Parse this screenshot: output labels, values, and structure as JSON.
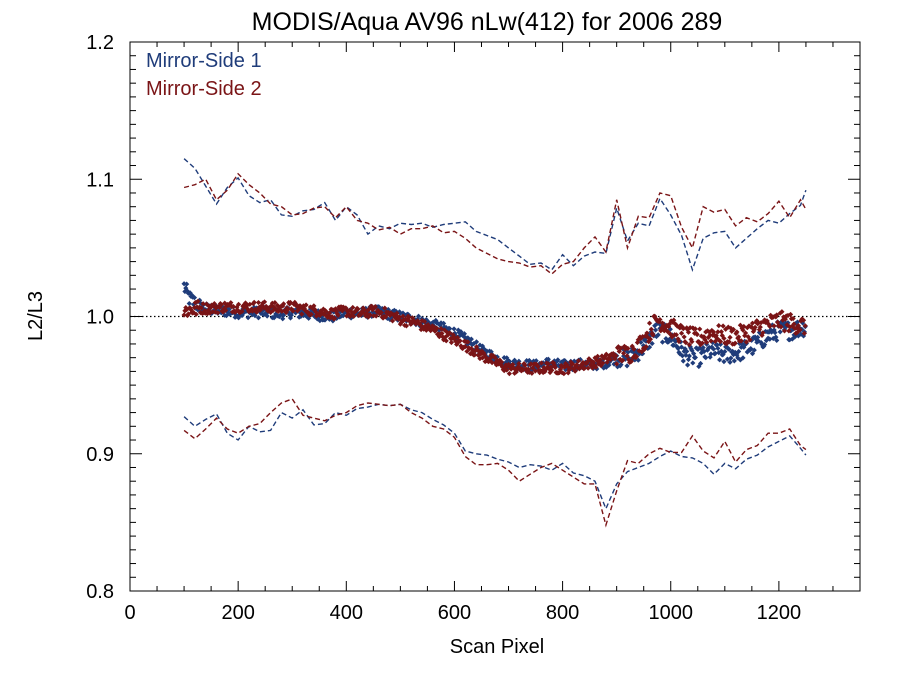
{
  "chart_data": {
    "type": "scatter",
    "title": "MODIS/Aqua AV96 nLw(412) for 2006 289",
    "xlabel": "Scan Pixel",
    "ylabel": "L2/L3",
    "xlim": [
      0,
      1350
    ],
    "ylim": [
      0.8,
      1.2
    ],
    "xticks": [
      0,
      200,
      400,
      600,
      800,
      1000,
      1200
    ],
    "yticks": [
      0.8,
      0.9,
      1.0,
      1.1,
      1.2
    ],
    "ytick_labels": [
      "0.8",
      "0.9",
      "1.0",
      "1.1",
      "1.2"
    ],
    "reference_line": 1.0,
    "legend_position": "top-left",
    "colors": {
      "ms1": "#1f3c7a",
      "ms2": "#7a1416",
      "axis": "#000000"
    },
    "series": [
      {
        "name": "Mirror-Side 1",
        "key": "ms1",
        "mean": {
          "x": [
            100,
            110,
            130,
            150,
            175,
            200,
            225,
            250,
            275,
            300,
            325,
            350,
            375,
            400,
            425,
            450,
            475,
            500,
            525,
            550,
            575,
            600,
            625,
            650,
            675,
            700,
            725,
            750,
            775,
            800,
            825,
            850,
            875,
            900,
            925,
            950,
            975,
            1000,
            1025,
            1050,
            1075,
            1100,
            1125,
            1150,
            1175,
            1200,
            1225,
            1250
          ],
          "y": [
            1.022,
            1.013,
            1.007,
            1.005,
            1.004,
            1.003,
            1.003,
            1.003,
            1.002,
            1.003,
            1.002,
            1.001,
            1.0,
            1.003,
            1.002,
            1.004,
            1.002,
            1.0,
            0.998,
            0.995,
            0.992,
            0.988,
            0.982,
            0.975,
            0.97,
            0.966,
            0.965,
            0.964,
            0.966,
            0.964,
            0.965,
            0.965,
            0.966,
            0.97,
            0.97,
            0.978,
            0.99,
            0.985,
            0.972,
            0.97,
            0.975,
            0.972,
            0.974,
            0.978,
            0.985,
            0.99,
            0.99,
            0.993
          ]
        },
        "upper": {
          "x": [
            100,
            120,
            140,
            160,
            180,
            200,
            220,
            240,
            260,
            280,
            300,
            320,
            340,
            360,
            380,
            400,
            420,
            440,
            460,
            480,
            500,
            520,
            540,
            560,
            580,
            600,
            620,
            640,
            660,
            680,
            700,
            720,
            740,
            760,
            780,
            800,
            820,
            840,
            860,
            880,
            900,
            920,
            940,
            960,
            980,
            1000,
            1020,
            1040,
            1060,
            1080,
            1100,
            1120,
            1140,
            1160,
            1180,
            1200,
            1220,
            1240,
            1250
          ],
          "y": [
            1.115,
            1.108,
            1.095,
            1.082,
            1.094,
            1.101,
            1.088,
            1.083,
            1.085,
            1.074,
            1.073,
            1.077,
            1.078,
            1.083,
            1.07,
            1.08,
            1.074,
            1.06,
            1.066,
            1.064,
            1.068,
            1.067,
            1.068,
            1.065,
            1.067,
            1.068,
            1.069,
            1.062,
            1.059,
            1.056,
            1.05,
            1.044,
            1.038,
            1.039,
            1.034,
            1.045,
            1.037,
            1.044,
            1.047,
            1.046,
            1.079,
            1.055,
            1.068,
            1.066,
            1.086,
            1.074,
            1.059,
            1.034,
            1.057,
            1.061,
            1.062,
            1.05,
            1.057,
            1.064,
            1.07,
            1.068,
            1.075,
            1.081,
            1.092
          ]
        },
        "lower": {
          "x": [
            100,
            120,
            140,
            160,
            180,
            200,
            220,
            240,
            260,
            280,
            300,
            320,
            340,
            360,
            380,
            400,
            420,
            440,
            460,
            480,
            500,
            520,
            540,
            560,
            580,
            600,
            620,
            640,
            660,
            680,
            700,
            720,
            740,
            760,
            780,
            800,
            820,
            840,
            860,
            880,
            900,
            920,
            940,
            960,
            980,
            1000,
            1020,
            1040,
            1060,
            1080,
            1100,
            1120,
            1140,
            1160,
            1180,
            1200,
            1220,
            1240,
            1250
          ],
          "y": [
            0.927,
            0.92,
            0.925,
            0.929,
            0.915,
            0.91,
            0.92,
            0.916,
            0.917,
            0.93,
            0.926,
            0.932,
            0.921,
            0.922,
            0.93,
            0.928,
            0.933,
            0.934,
            0.936,
            0.935,
            0.936,
            0.932,
            0.93,
            0.925,
            0.921,
            0.915,
            0.902,
            0.9,
            0.899,
            0.896,
            0.894,
            0.89,
            0.892,
            0.891,
            0.888,
            0.893,
            0.886,
            0.884,
            0.88,
            0.86,
            0.878,
            0.887,
            0.89,
            0.893,
            0.898,
            0.902,
            0.898,
            0.897,
            0.893,
            0.885,
            0.893,
            0.889,
            0.896,
            0.899,
            0.905,
            0.909,
            0.913,
            0.904,
            0.899
          ]
        }
      },
      {
        "name": "Mirror-Side 2",
        "key": "ms2",
        "mean": {
          "x": [
            100,
            110,
            130,
            150,
            175,
            200,
            225,
            250,
            275,
            300,
            325,
            350,
            375,
            400,
            425,
            450,
            475,
            500,
            525,
            550,
            575,
            600,
            625,
            650,
            675,
            700,
            725,
            750,
            775,
            800,
            825,
            850,
            875,
            900,
            925,
            950,
            975,
            1000,
            1025,
            1050,
            1075,
            1100,
            1125,
            1150,
            1175,
            1200,
            1225,
            1250
          ],
          "y": [
            1.004,
            1.005,
            1.006,
            1.006,
            1.007,
            1.007,
            1.007,
            1.007,
            1.006,
            1.007,
            1.005,
            1.004,
            1.002,
            1.004,
            1.002,
            1.004,
            1.002,
            0.998,
            0.996,
            0.992,
            0.988,
            0.983,
            0.978,
            0.972,
            0.967,
            0.962,
            0.962,
            0.962,
            0.963,
            0.962,
            0.964,
            0.966,
            0.968,
            0.972,
            0.973,
            0.982,
            0.998,
            0.992,
            0.986,
            0.984,
            0.988,
            0.986,
            0.986,
            0.99,
            0.994,
            0.997,
            0.995,
            0.993
          ]
        },
        "upper": {
          "x": [
            100,
            120,
            140,
            160,
            180,
            200,
            220,
            240,
            260,
            280,
            300,
            320,
            340,
            360,
            380,
            400,
            420,
            440,
            460,
            480,
            500,
            520,
            540,
            560,
            580,
            600,
            620,
            640,
            660,
            680,
            700,
            720,
            740,
            760,
            780,
            800,
            820,
            840,
            860,
            880,
            900,
            920,
            940,
            960,
            980,
            1000,
            1020,
            1040,
            1060,
            1080,
            1100,
            1120,
            1140,
            1160,
            1180,
            1200,
            1220,
            1240,
            1250
          ],
          "y": [
            1.094,
            1.096,
            1.1,
            1.085,
            1.092,
            1.104,
            1.096,
            1.09,
            1.082,
            1.08,
            1.074,
            1.075,
            1.079,
            1.08,
            1.072,
            1.08,
            1.07,
            1.068,
            1.063,
            1.065,
            1.06,
            1.064,
            1.064,
            1.066,
            1.061,
            1.062,
            1.057,
            1.05,
            1.046,
            1.042,
            1.04,
            1.039,
            1.036,
            1.037,
            1.031,
            1.038,
            1.04,
            1.05,
            1.058,
            1.047,
            1.085,
            1.05,
            1.073,
            1.072,
            1.09,
            1.088,
            1.065,
            1.05,
            1.08,
            1.076,
            1.078,
            1.066,
            1.072,
            1.069,
            1.075,
            1.084,
            1.072,
            1.085,
            1.078
          ]
        },
        "lower": {
          "x": [
            100,
            120,
            140,
            160,
            180,
            200,
            220,
            240,
            260,
            280,
            300,
            320,
            340,
            360,
            380,
            400,
            420,
            440,
            460,
            480,
            500,
            520,
            540,
            560,
            580,
            600,
            620,
            640,
            660,
            680,
            700,
            720,
            740,
            760,
            780,
            800,
            820,
            840,
            860,
            880,
            900,
            920,
            940,
            960,
            980,
            1000,
            1020,
            1040,
            1060,
            1080,
            1100,
            1120,
            1140,
            1160,
            1180,
            1200,
            1220,
            1240,
            1250
          ],
          "y": [
            0.917,
            0.911,
            0.918,
            0.926,
            0.918,
            0.915,
            0.92,
            0.922,
            0.93,
            0.937,
            0.94,
            0.928,
            0.926,
            0.924,
            0.928,
            0.93,
            0.935,
            0.937,
            0.936,
            0.935,
            0.936,
            0.93,
            0.926,
            0.92,
            0.918,
            0.912,
            0.898,
            0.892,
            0.892,
            0.893,
            0.888,
            0.88,
            0.885,
            0.89,
            0.893,
            0.888,
            0.883,
            0.878,
            0.878,
            0.848,
            0.873,
            0.895,
            0.893,
            0.9,
            0.904,
            0.901,
            0.901,
            0.913,
            0.902,
            0.897,
            0.909,
            0.894,
            0.903,
            0.906,
            0.915,
            0.915,
            0.918,
            0.906,
            0.903
          ]
        }
      }
    ]
  }
}
